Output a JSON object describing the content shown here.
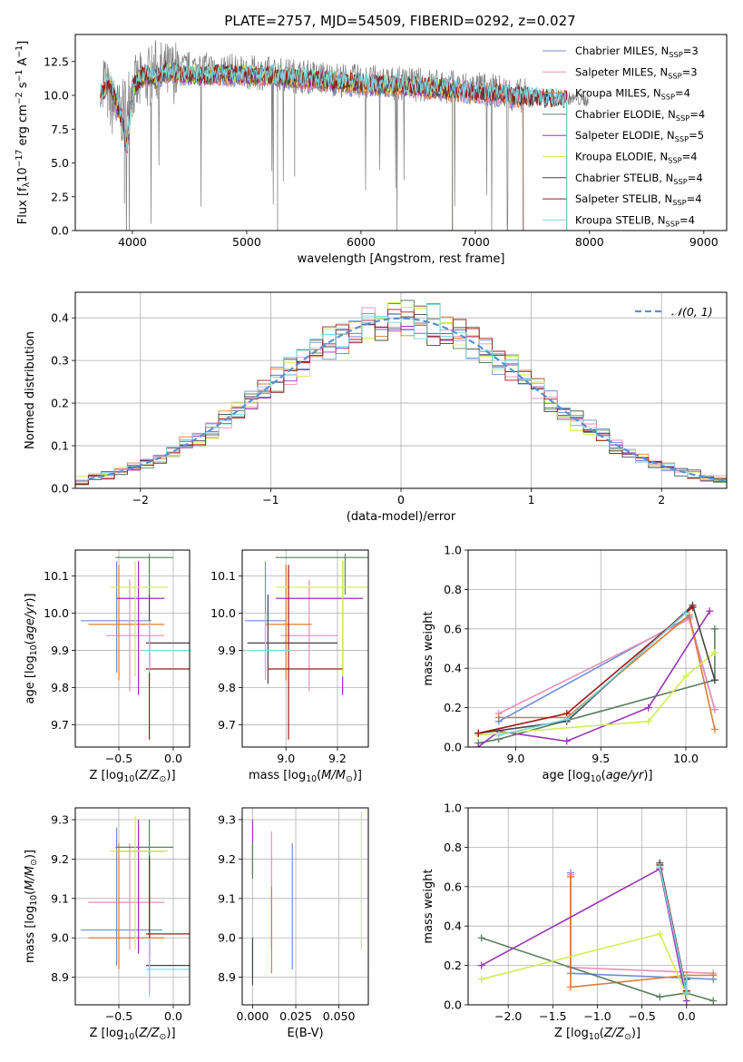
{
  "figure": {
    "title": "PLATE=2757, MJD=54509, FIBERID=0292, z=0.027"
  },
  "colors": {
    "Chabrier MILES": "#6b8fd6",
    "Salpeter MILES": "#e88fb8",
    "Kroupa MILES": "#e07b2e",
    "Chabrier ELODIE": "#5a8060",
    "Salpeter ELODIE": "#9a35b5",
    "Kroupa ELODIE": "#cfee55",
    "Chabrier STELIB": "#444444",
    "Salpeter STELIB": "#a01818",
    "Kroupa STELIB": "#7ad6e0",
    "data": "#7f7f7f",
    "normal": "#5b8fd8"
  },
  "chart_data": [
    {
      "id": "spectrum",
      "type": "line",
      "title": "PLATE=2757, MJD=54509, FIBERID=0292, z=0.027",
      "xlabel": "wavelength [Angstrom, rest frame]",
      "ylabel": "Flux [f_λ 10^-17 erg cm^-2 s^-1 A^-1]",
      "xlim": [
        3500,
        9200
      ],
      "ylim": [
        0,
        14.5
      ],
      "xticks": [
        4000,
        5000,
        6000,
        7000,
        8000,
        9000
      ],
      "yticks": [
        0.0,
        2.5,
        5.0,
        7.5,
        10.0,
        12.5
      ],
      "grid": false,
      "legend_position": "right",
      "legend": [
        "Chabrier MILES, N_SSP=3",
        "Salpeter MILES, N_SSP=3",
        "Kroupa MILES, N_SSP=4",
        "Chabrier ELODIE, N_SSP=4",
        "Salpeter ELODIE, N_SSP=5",
        "Kroupa ELODIE, N_SSP=4",
        "Chabrier STELIB, N_SSP=4",
        "Salpeter STELIB, N_SSP=4",
        "Kroupa STELIB, N_SSP=4"
      ],
      "data_x": [
        3750,
        3800,
        3900,
        4000,
        4100,
        4200,
        4300,
        4500,
        4800,
        5000,
        5200,
        5500,
        6000,
        6500,
        7000,
        7200,
        7400,
        7500,
        7800,
        8000
      ],
      "data_y": [
        11.5,
        9.5,
        8.5,
        10.5,
        11.0,
        11.8,
        11.6,
        12.0,
        11.9,
        11.7,
        11.6,
        11.4,
        11.0,
        10.8,
        10.5,
        10.3,
        10.0,
        10.0,
        9.8,
        9.6
      ],
      "model_x": [
        3720,
        3800,
        3900,
        3950,
        4000,
        4100,
        4200,
        4300,
        4500,
        5000,
        5500,
        6000,
        6500,
        7000,
        7200,
        7400,
        7800,
        8000
      ],
      "model_y": [
        10.0,
        11.0,
        8.5,
        6.0,
        10.5,
        11.5,
        11.2,
        11.8,
        11.5,
        11.5,
        11.2,
        10.8,
        10.6,
        10.2,
        10.0,
        9.8,
        9.6,
        9.5
      ],
      "model_end": {
        "Chabrier MILES": 7420,
        "Salpeter MILES": 7420,
        "Kroupa MILES": 7420,
        "Chabrier ELODIE": 6800,
        "Salpeter ELODIE": 6800,
        "Kroupa ELODIE": 6800,
        "Chabrier STELIB": 7800,
        "Salpeter STELIB": 7800,
        "Kroupa STELIB": 7800
      }
    },
    {
      "id": "residuals",
      "type": "line",
      "xlabel": "(data-model)/error",
      "ylabel": "Normed distribution",
      "xlim": [
        -2.5,
        2.5
      ],
      "ylim": [
        0,
        0.46
      ],
      "xticks": [
        -2,
        -1,
        0,
        1,
        2
      ],
      "yticks": [
        0.0,
        0.1,
        0.2,
        0.3,
        0.4
      ],
      "grid": true,
      "legend_position": "top-right",
      "legend": [
        "𝒩(0, 1)"
      ],
      "bin_width": 0.1
    },
    {
      "id": "age_vs_Z",
      "type": "scatter",
      "xlabel": "Z [log10(Z/Z⊙)]",
      "ylabel": "age [log10(age/yr)]",
      "xlim": [
        -0.9,
        0.15
      ],
      "ylim": [
        9.64,
        10.17
      ],
      "xticks": [
        -0.5,
        0.0
      ],
      "yticks": [
        9.7,
        9.8,
        9.9,
        10.0,
        10.1
      ],
      "grid": true,
      "points": [
        {
          "model": "Chabrier MILES",
          "x": -0.52,
          "y": 9.98,
          "ex": [
            -0.85,
            -0.2
          ],
          "ey": [
            9.84,
            10.14
          ]
        },
        {
          "model": "Salpeter MILES",
          "x": -0.4,
          "y": 9.94,
          "ex": [
            -0.62,
            -0.08
          ],
          "ey": [
            9.79,
            10.09
          ]
        },
        {
          "model": "Kroupa MILES",
          "x": -0.5,
          "y": 9.97,
          "ex": [
            -0.78,
            -0.08
          ],
          "ey": [
            9.82,
            10.13
          ]
        },
        {
          "model": "Chabrier ELODIE",
          "x": -0.22,
          "y": 10.15,
          "ex": [
            -0.53,
            0.0
          ],
          "ey": [
            10.05,
            10.16
          ]
        },
        {
          "model": "Salpeter ELODIE",
          "x": -0.32,
          "y": 10.04,
          "ex": [
            -0.52,
            -0.08
          ],
          "ey": [
            9.78,
            10.14
          ]
        },
        {
          "model": "Kroupa ELODIE",
          "x": -0.35,
          "y": 10.07,
          "ex": [
            -0.58,
            -0.05
          ],
          "ey": [
            9.83,
            10.14
          ]
        },
        {
          "model": "Chabrier STELIB",
          "x": -0.22,
          "y": 9.92,
          "ex": [
            -0.25,
            0.18
          ],
          "ey": [
            9.85,
            10.05
          ]
        },
        {
          "model": "Salpeter STELIB",
          "x": -0.22,
          "y": 9.85,
          "ex": [
            -0.25,
            0.18
          ],
          "ey": [
            9.66,
            9.94
          ]
        },
        {
          "model": "Kroupa STELIB",
          "x": -0.22,
          "y": 9.9,
          "ex": [
            -0.25,
            0.18
          ],
          "ey": [
            9.84,
            9.98
          ]
        }
      ]
    },
    {
      "id": "age_vs_mass",
      "type": "scatter",
      "xlabel": "mass [log10(M/M⊙)]",
      "ylabel": "",
      "xlim": [
        8.83,
        9.32
      ],
      "ylim": [
        9.64,
        10.17
      ],
      "xticks": [
        9.0,
        9.2
      ],
      "yticks": [
        9.7,
        9.8,
        9.9,
        10.0,
        10.1
      ],
      "grid": true,
      "points": [
        {
          "model": "Chabrier MILES",
          "x": 8.92,
          "y": 9.98,
          "ex": [
            8.84,
            9.0
          ],
          "ey": [
            9.84,
            10.14
          ]
        },
        {
          "model": "Salpeter MILES",
          "x": 9.09,
          "y": 9.94,
          "ex": [
            8.98,
            9.2
          ],
          "ey": [
            9.79,
            10.09
          ]
        },
        {
          "model": "Kroupa MILES",
          "x": 9.0,
          "y": 9.97,
          "ex": [
            8.92,
            9.1
          ],
          "ey": [
            9.82,
            10.13
          ]
        },
        {
          "model": "Chabrier ELODIE",
          "x": 9.23,
          "y": 10.15,
          "ex": [
            8.96,
            9.32
          ],
          "ey": [
            10.05,
            10.16
          ]
        },
        {
          "model": "Salpeter ELODIE",
          "x": 9.22,
          "y": 10.04,
          "ex": [
            8.96,
            9.3
          ],
          "ey": [
            9.78,
            10.14
          ]
        },
        {
          "model": "Kroupa ELODIE",
          "x": 9.22,
          "y": 10.07,
          "ex": [
            8.96,
            9.32
          ],
          "ey": [
            9.83,
            10.14
          ]
        },
        {
          "model": "Chabrier STELIB",
          "x": 8.93,
          "y": 9.92,
          "ex": [
            8.85,
            9.2
          ],
          "ey": [
            9.81,
            10.05
          ]
        },
        {
          "model": "Salpeter STELIB",
          "x": 9.01,
          "y": 9.85,
          "ex": [
            8.93,
            9.22
          ],
          "ey": [
            9.66,
            10.13
          ]
        },
        {
          "model": "Kroupa STELIB",
          "x": 8.92,
          "y": 9.9,
          "ex": [
            8.86,
            9.02
          ],
          "ey": [
            9.82,
            10.0
          ]
        }
      ]
    },
    {
      "id": "weight_vs_age",
      "type": "line",
      "xlabel": "age [log10(age/yr)]",
      "ylabel": "mass weight",
      "xlim": [
        8.72,
        10.24
      ],
      "ylim": [
        0,
        1
      ],
      "xticks": [
        9.0,
        9.5,
        10.0
      ],
      "yticks": [
        0.0,
        0.2,
        0.4,
        0.6,
        0.8,
        1.0
      ],
      "grid": true,
      "series": [
        {
          "name": "Chabrier MILES",
          "x": [
            8.9,
            10.02,
            10.17
          ],
          "y": [
            0.13,
            0.66,
            0.19
          ]
        },
        {
          "name": "Salpeter MILES",
          "x": [
            8.9,
            10.02,
            10.17
          ],
          "y": [
            0.17,
            0.65,
            0.19
          ]
        },
        {
          "name": "Kroupa MILES",
          "x": [
            8.9,
            9.3,
            10.02,
            10.17
          ],
          "y": [
            0.15,
            0.15,
            0.67,
            0.09
          ]
        },
        {
          "name": "Chabrier ELODIE",
          "x": [
            8.78,
            8.9,
            10.17,
            10.17
          ],
          "y": [
            0.02,
            0.04,
            0.34,
            0.6
          ]
        },
        {
          "name": "Salpeter ELODIE",
          "x": [
            8.78,
            8.9,
            9.3,
            9.78,
            10.14
          ],
          "y": [
            0.0,
            0.08,
            0.03,
            0.2,
            0.69
          ]
        },
        {
          "name": "Kroupa ELODIE",
          "x": [
            8.78,
            8.9,
            9.78,
            10.0,
            10.17
          ],
          "y": [
            0.06,
            0.07,
            0.13,
            0.36,
            0.48
          ]
        },
        {
          "name": "Chabrier STELIB",
          "x": [
            8.78,
            9.3,
            10.04,
            10.17
          ],
          "y": [
            0.07,
            0.13,
            0.72,
            0.34
          ]
        },
        {
          "name": "Salpeter STELIB",
          "x": [
            8.78,
            9.3,
            10.04
          ],
          "y": [
            0.07,
            0.17,
            0.71
          ]
        },
        {
          "name": "Kroupa STELIB",
          "x": [
            8.9,
            9.3,
            10.0
          ],
          "y": [
            0.06,
            0.14,
            0.68
          ]
        }
      ]
    },
    {
      "id": "mass_vs_Z",
      "type": "scatter",
      "xlabel": "Z [log10(Z/Z⊙)]",
      "ylabel": "mass [log10(M/M⊙)]",
      "xlim": [
        -0.9,
        0.15
      ],
      "ylim": [
        8.83,
        9.33
      ],
      "xticks": [
        -0.5,
        0.0
      ],
      "yticks": [
        8.9,
        9.0,
        9.1,
        9.2,
        9.3
      ],
      "grid": true,
      "points": [
        {
          "model": "Chabrier MILES",
          "x": -0.52,
          "y": 9.02,
          "ex": [
            -0.85,
            -0.1
          ],
          "ey": [
            8.93,
            9.28
          ]
        },
        {
          "model": "Salpeter MILES",
          "x": -0.4,
          "y": 9.09,
          "ex": [
            -0.78,
            -0.08
          ],
          "ey": [
            8.97,
            9.24
          ]
        },
        {
          "model": "Kroupa MILES",
          "x": -0.5,
          "y": 9.0,
          "ex": [
            -0.78,
            -0.08
          ],
          "ey": [
            8.92,
            9.24
          ]
        },
        {
          "model": "Chabrier ELODIE",
          "x": -0.22,
          "y": 9.23,
          "ex": [
            -0.53,
            0.0
          ],
          "ey": [
            8.94,
            9.3
          ]
        },
        {
          "model": "Salpeter ELODIE",
          "x": -0.32,
          "y": 9.22,
          "ex": [
            -0.52,
            -0.08
          ],
          "ey": [
            8.96,
            9.3
          ]
        },
        {
          "model": "Kroupa ELODIE",
          "x": -0.35,
          "y": 9.22,
          "ex": [
            -0.58,
            -0.05
          ],
          "ey": [
            8.97,
            9.31
          ]
        },
        {
          "model": "Chabrier STELIB",
          "x": -0.22,
          "y": 8.93,
          "ex": [
            -0.25,
            0.18
          ],
          "ey": [
            8.86,
            9.21
          ]
        },
        {
          "model": "Salpeter STELIB",
          "x": -0.22,
          "y": 9.01,
          "ex": [
            -0.25,
            0.18
          ],
          "ey": [
            8.95,
            9.2
          ]
        },
        {
          "model": "Kroupa STELIB",
          "x": -0.22,
          "y": 8.92,
          "ex": [
            -0.25,
            0.18
          ],
          "ey": [
            8.85,
            9.0
          ]
        }
      ]
    },
    {
      "id": "mass_vs_ebv",
      "type": "scatter",
      "xlabel": "E(B-V)",
      "ylabel": "",
      "xlim": [
        -0.006,
        0.067
      ],
      "ylim": [
        8.83,
        9.33
      ],
      "xticks": [
        0.0,
        0.025,
        0.05
      ],
      "yticks": [
        8.9,
        9.0,
        9.1,
        9.2,
        9.3
      ],
      "grid": true,
      "points": [
        {
          "model": "Salpeter ELODIE",
          "x": 0.0,
          "y": 9.22,
          "ey": [
            9.16,
            9.3
          ]
        },
        {
          "model": "Chabrier ELODIE",
          "x": 0.0,
          "y": 9.23,
          "ey": [
            9.15,
            9.24
          ]
        },
        {
          "model": "Kroupa STELIB",
          "x": 0.0,
          "y": 8.95,
          "ey": [
            8.9,
            9.0
          ]
        },
        {
          "model": "Chabrier STELIB",
          "x": 0.0,
          "y": 8.93,
          "ey": [
            8.88,
            9.0
          ]
        },
        {
          "model": "Salpeter MILES",
          "x": 0.011,
          "y": 9.09,
          "ey": [
            8.97,
            9.27
          ]
        },
        {
          "model": "Kroupa MILES",
          "x": 0.011,
          "y": 9.0,
          "ey": [
            8.91,
            9.13
          ]
        },
        {
          "model": "Chabrier MILES",
          "x": 0.023,
          "y": 9.02,
          "ey": [
            8.92,
            9.24
          ]
        },
        {
          "model": "Kroupa ELODIE",
          "x": 0.063,
          "y": 9.22,
          "ey": [
            8.97,
            9.32
          ]
        }
      ]
    },
    {
      "id": "weight_vs_Z",
      "type": "line",
      "xlabel": "Z [log10(Z/Z⊙)]",
      "ylabel": "mass weight",
      "xlim": [
        -2.45,
        0.45
      ],
      "ylim": [
        0,
        1
      ],
      "xticks": [
        -2.0,
        -1.5,
        -1.0,
        -0.5,
        0.0
      ],
      "yticks": [
        0.0,
        0.2,
        0.4,
        0.6,
        0.8,
        1.0
      ],
      "grid": true,
      "series": [
        {
          "name": "Chabrier MILES",
          "x": [
            -1.3,
            -1.3,
            0.3
          ],
          "y": [
            0.67,
            0.16,
            0.13
          ]
        },
        {
          "name": "Salpeter MILES",
          "x": [
            -1.3,
            -1.3,
            0.3
          ],
          "y": [
            0.66,
            0.19,
            0.16
          ]
        },
        {
          "name": "Kroupa MILES",
          "x": [
            -1.3,
            -1.3,
            0.0,
            0.3
          ],
          "y": [
            0.65,
            0.09,
            0.15,
            0.15
          ]
        },
        {
          "name": "Chabrier ELODIE",
          "x": [
            -2.3,
            -0.3,
            0.0,
            0.3
          ],
          "y": [
            0.34,
            0.04,
            0.06,
            0.02
          ]
        },
        {
          "name": "Salpeter ELODIE",
          "x": [
            -2.3,
            -0.3,
            0.0
          ],
          "y": [
            0.2,
            0.69,
            0.02
          ]
        },
        {
          "name": "Kroupa ELODIE",
          "x": [
            -2.3,
            -0.3,
            0.0
          ],
          "y": [
            0.13,
            0.36,
            0.05
          ]
        },
        {
          "name": "Chabrier STELIB",
          "x": [
            -0.3,
            0.0,
            0.0
          ],
          "y": [
            0.72,
            0.07,
            0.13
          ]
        },
        {
          "name": "Salpeter STELIB",
          "x": [
            -0.3,
            0.0
          ],
          "y": [
            0.71,
            0.07
          ]
        },
        {
          "name": "Kroupa STELIB",
          "x": [
            -0.3,
            0.0,
            0.0
          ],
          "y": [
            0.7,
            0.06,
            0.14
          ]
        }
      ]
    }
  ]
}
